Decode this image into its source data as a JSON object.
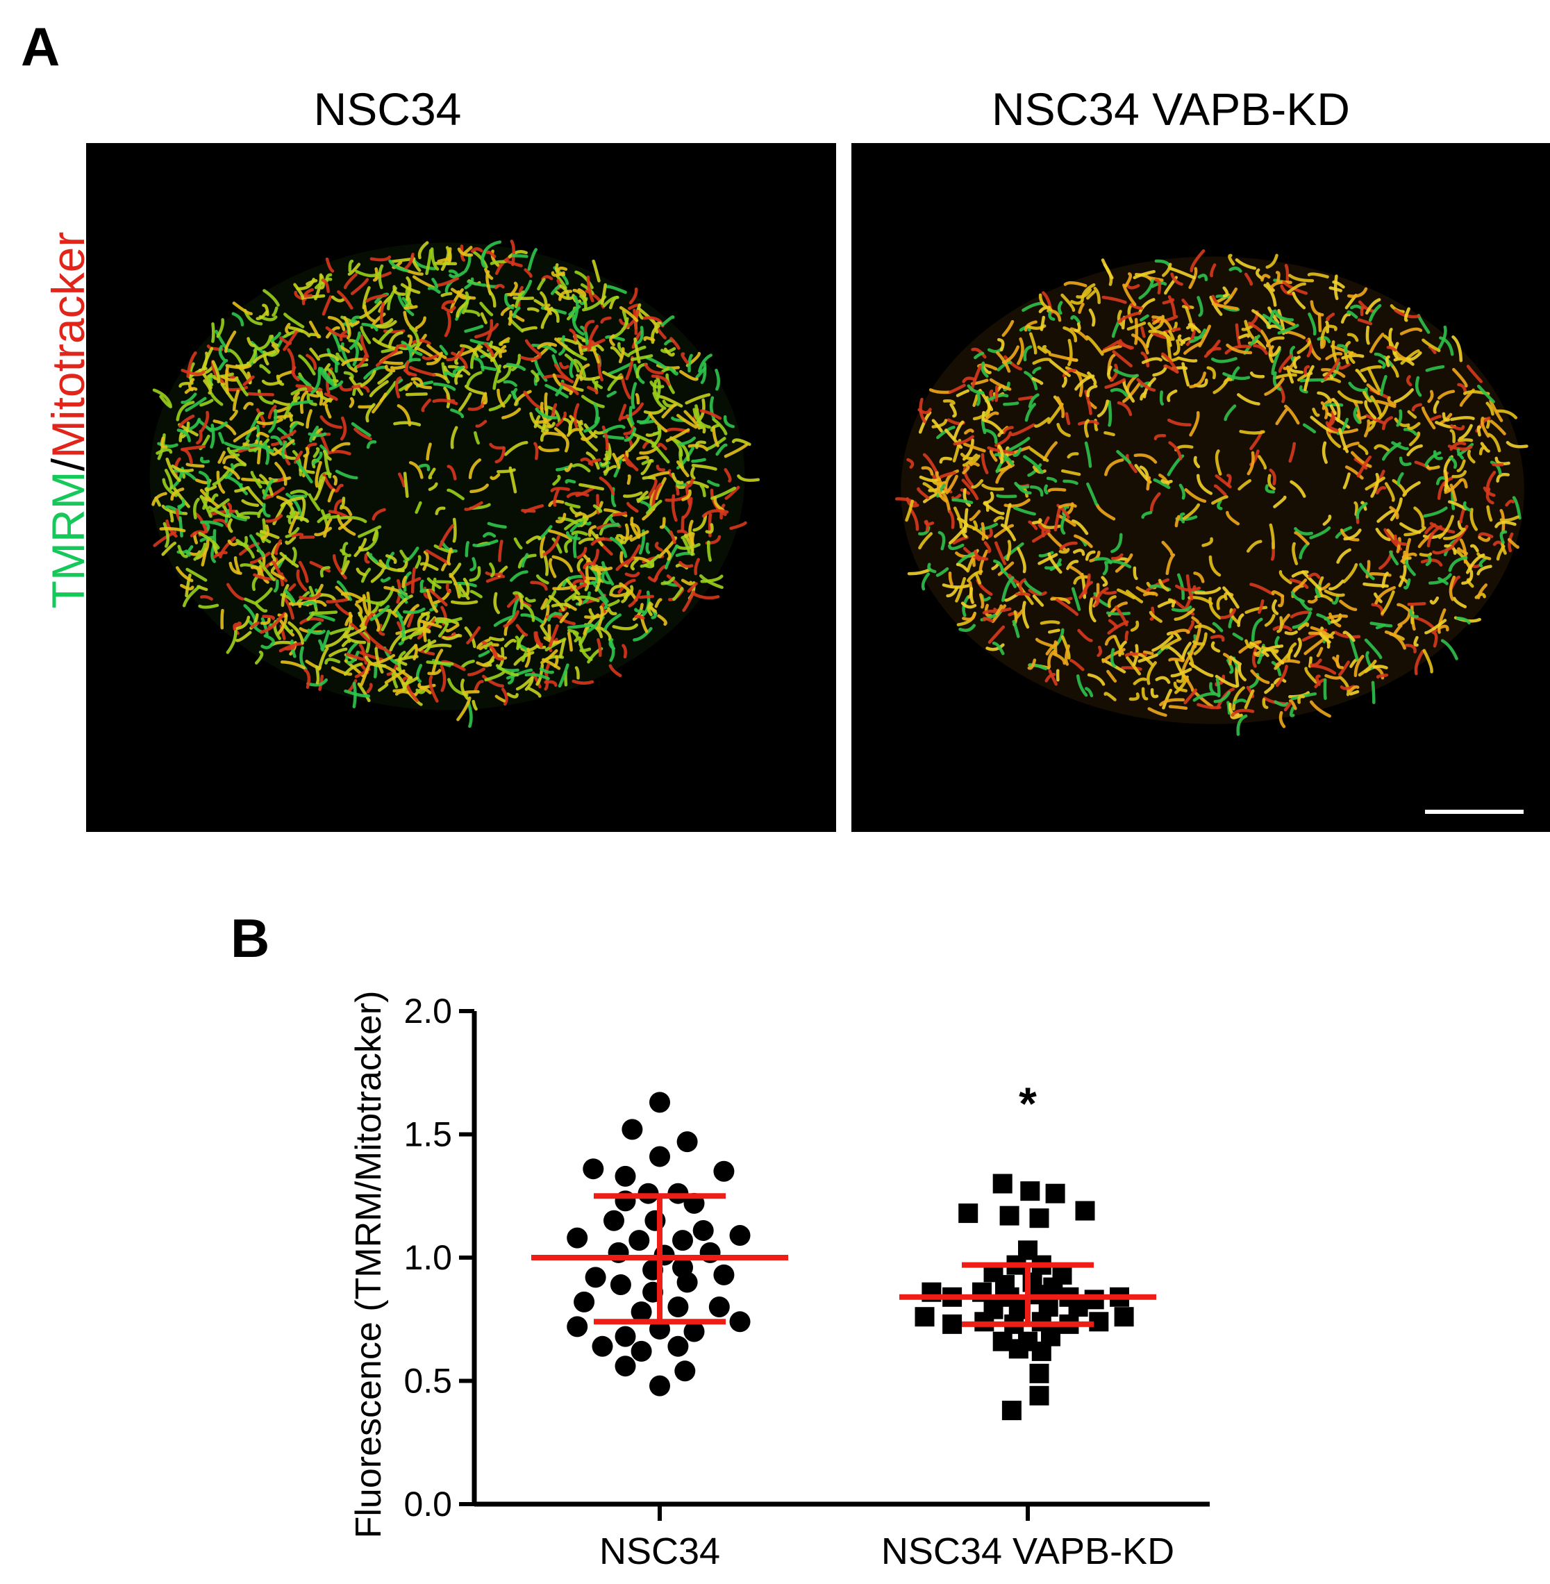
{
  "panel_a": {
    "letter": "A",
    "titles": [
      "NSC34",
      "NSC34 VAPB-KD"
    ],
    "side_label": {
      "part1": "TMRM",
      "slash": "/",
      "part2": "Mitotracker"
    },
    "colors": {
      "tmrm": "#16c75a",
      "mitotracker": "#e1251b"
    },
    "images": [
      {
        "name": "micrograph-nsc34",
        "description_icon": "mitochondria-fluorescence-image"
      },
      {
        "name": "micrograph-nsc34-vapb-kd",
        "description_icon": "mitochondria-fluorescence-image"
      }
    ]
  },
  "panel_b": {
    "letter": "B"
  },
  "chart_data": {
    "type": "scatter",
    "title": "",
    "xlabel": "",
    "ylabel": "Fluorescence (TMRM/Mitotracker)",
    "ylim": [
      0.0,
      2.0
    ],
    "yticks": [
      "0.0",
      "0.5",
      "1.0",
      "1.5",
      "2.0"
    ],
    "categories": [
      "NSC34",
      "NSC34 VAPB-KD"
    ],
    "grid": false,
    "legend": "none",
    "significance": {
      "category": "NSC34 VAPB-KD",
      "label": "*"
    },
    "series": [
      {
        "category": "NSC34",
        "marker": "circle",
        "mean": 1.0,
        "sd_low": 0.74,
        "sd_high": 1.25,
        "points": [
          [
            -0.29,
            1.36
          ],
          [
            -0.15,
            1.33
          ],
          [
            0.0,
            1.63
          ],
          [
            -0.12,
            1.52
          ],
          [
            0.12,
            1.47
          ],
          [
            0.0,
            1.41
          ],
          [
            0.28,
            1.35
          ],
          [
            -0.05,
            1.26
          ],
          [
            0.08,
            1.26
          ],
          [
            -0.15,
            1.23
          ],
          [
            0.15,
            1.22
          ],
          [
            -0.2,
            1.15
          ],
          [
            -0.02,
            1.15
          ],
          [
            0.19,
            1.11
          ],
          [
            -0.36,
            1.08
          ],
          [
            -0.09,
            1.07
          ],
          [
            0.1,
            1.07
          ],
          [
            0.35,
            1.09
          ],
          [
            -0.18,
            1.02
          ],
          [
            0.02,
            1.01
          ],
          [
            0.22,
            1.02
          ],
          [
            -0.28,
            0.92
          ],
          [
            -0.03,
            0.95
          ],
          [
            0.1,
            0.96
          ],
          [
            0.28,
            0.93
          ],
          [
            -0.17,
            0.89
          ],
          [
            0.12,
            0.9
          ],
          [
            -0.03,
            0.86
          ],
          [
            -0.33,
            0.82
          ],
          [
            -0.08,
            0.78
          ],
          [
            0.08,
            0.8
          ],
          [
            0.26,
            0.8
          ],
          [
            -0.36,
            0.72
          ],
          [
            -0.15,
            0.68
          ],
          [
            0.0,
            0.71
          ],
          [
            0.15,
            0.7
          ],
          [
            0.35,
            0.74
          ],
          [
            -0.25,
            0.64
          ],
          [
            -0.08,
            0.62
          ],
          [
            0.08,
            0.64
          ],
          [
            -0.15,
            0.56
          ],
          [
            0.11,
            0.54
          ],
          [
            0.0,
            0.48
          ]
        ]
      },
      {
        "category": "NSC34 VAPB-KD",
        "marker": "square",
        "mean": 0.84,
        "sd_low": 0.73,
        "sd_high": 0.97,
        "points": [
          [
            -0.11,
            1.3
          ],
          [
            0.01,
            1.27
          ],
          [
            0.12,
            1.26
          ],
          [
            -0.26,
            1.18
          ],
          [
            -0.08,
            1.17
          ],
          [
            0.05,
            1.16
          ],
          [
            0.25,
            1.19
          ],
          [
            0.0,
            1.03
          ],
          [
            -0.05,
            0.97
          ],
          [
            0.06,
            0.97
          ],
          [
            -0.15,
            0.94
          ],
          [
            0.15,
            0.93
          ],
          [
            -0.1,
            0.89
          ],
          [
            0.02,
            0.9
          ],
          [
            0.11,
            0.88
          ],
          [
            -0.42,
            0.86
          ],
          [
            -0.33,
            0.84
          ],
          [
            -0.2,
            0.86
          ],
          [
            -0.08,
            0.84
          ],
          [
            0.05,
            0.85
          ],
          [
            0.18,
            0.84
          ],
          [
            0.29,
            0.83
          ],
          [
            0.4,
            0.84
          ],
          [
            -0.15,
            0.79
          ],
          [
            -0.04,
            0.79
          ],
          [
            0.09,
            0.8
          ],
          [
            0.22,
            0.8
          ],
          [
            -0.45,
            0.76
          ],
          [
            -0.33,
            0.73
          ],
          [
            -0.19,
            0.74
          ],
          [
            -0.06,
            0.73
          ],
          [
            0.06,
            0.74
          ],
          [
            0.18,
            0.73
          ],
          [
            0.31,
            0.74
          ],
          [
            0.42,
            0.76
          ],
          [
            -0.11,
            0.66
          ],
          [
            0.0,
            0.66
          ],
          [
            0.1,
            0.68
          ],
          [
            -0.04,
            0.63
          ],
          [
            0.06,
            0.62
          ],
          [
            0.05,
            0.53
          ],
          [
            0.05,
            0.44
          ],
          [
            -0.07,
            0.38
          ]
        ]
      }
    ]
  }
}
